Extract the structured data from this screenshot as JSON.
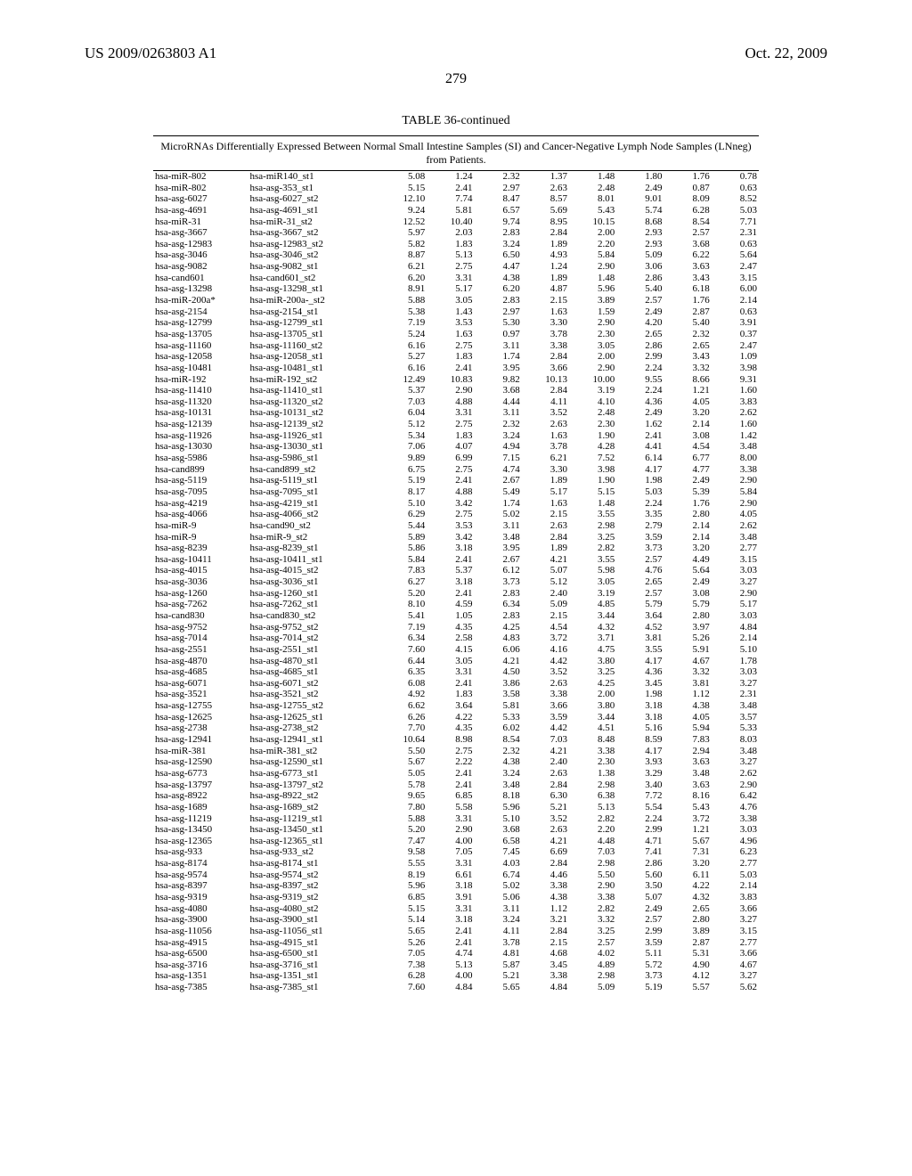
{
  "header": {
    "left": "US 2009/0263803 A1",
    "right": "Oct. 22, 2009"
  },
  "page_number": "279",
  "table_title": "TABLE 36-continued",
  "caption": "MicroRNAs Differentially Expressed Between Normal Small Intestine Samples (SI) and Cancer-Negative Lymph Node Samples (LNneg) from Patients.",
  "rows": [
    [
      "hsa-miR-802",
      "hsa-miR140_st1",
      "5.08",
      "1.24",
      "2.32",
      "1.37",
      "1.48",
      "1.80",
      "1.76",
      "0.78"
    ],
    [
      "hsa-miR-802",
      "hsa-asg-353_st1",
      "5.15",
      "2.41",
      "2.97",
      "2.63",
      "2.48",
      "2.49",
      "0.87",
      "0.63"
    ],
    [
      "hsa-asg-6027",
      "hsa-asg-6027_st2",
      "12.10",
      "7.74",
      "8.47",
      "8.57",
      "8.01",
      "9.01",
      "8.09",
      "8.52"
    ],
    [
      "hsa-asg-4691",
      "hsa-asg-4691_st1",
      "9.24",
      "5.81",
      "6.57",
      "5.69",
      "5.43",
      "5.74",
      "6.28",
      "5.03"
    ],
    [
      "hsa-miR-31",
      "hsa-miR-31_st2",
      "12.52",
      "10.40",
      "9.74",
      "8.95",
      "10.15",
      "8.68",
      "8.54",
      "7.71"
    ],
    [
      "hsa-asg-3667",
      "hsa-asg-3667_st2",
      "5.97",
      "2.03",
      "2.83",
      "2.84",
      "2.00",
      "2.93",
      "2.57",
      "2.31"
    ],
    [
      "hsa-asg-12983",
      "hsa-asg-12983_st2",
      "5.82",
      "1.83",
      "3.24",
      "1.89",
      "2.20",
      "2.93",
      "3.68",
      "0.63"
    ],
    [
      "hsa-asg-3046",
      "hsa-asg-3046_st2",
      "8.87",
      "5.13",
      "6.50",
      "4.93",
      "5.84",
      "5.09",
      "6.22",
      "5.64"
    ],
    [
      "hsa-asg-9082",
      "hsa-asg-9082_st1",
      "6.21",
      "2.75",
      "4.47",
      "1.24",
      "2.90",
      "3.06",
      "3.63",
      "2.47"
    ],
    [
      "hsa-cand601",
      "hsa-cand601_st2",
      "6.20",
      "3.31",
      "4.38",
      "1.89",
      "1.48",
      "2.86",
      "3.43",
      "3.15"
    ],
    [
      "hsa-asg-13298",
      "hsa-asg-13298_st1",
      "8.91",
      "5.17",
      "6.20",
      "4.87",
      "5.96",
      "5.40",
      "6.18",
      "6.00"
    ],
    [
      "hsa-miR-200a*",
      "hsa-miR-200a-_st2",
      "5.88",
      "3.05",
      "2.83",
      "2.15",
      "3.89",
      "2.57",
      "1.76",
      "2.14"
    ],
    [
      "hsa-asg-2154",
      "hsa-asg-2154_st1",
      "5.38",
      "1.43",
      "2.97",
      "1.63",
      "1.59",
      "2.49",
      "2.87",
      "0.63"
    ],
    [
      "hsa-asg-12799",
      "hsa-asg-12799_st1",
      "7.19",
      "3.53",
      "5.30",
      "3.30",
      "2.90",
      "4.20",
      "5.40",
      "3.91"
    ],
    [
      "hsa-asg-13705",
      "hsa-asg-13705_st1",
      "5.24",
      "1.63",
      "0.97",
      "3.78",
      "2.30",
      "2.65",
      "2.32",
      "0.37"
    ],
    [
      "hsa-asg-11160",
      "hsa-asg-11160_st2",
      "6.16",
      "2.75",
      "3.11",
      "3.38",
      "3.05",
      "2.86",
      "2.65",
      "2.47"
    ],
    [
      "hsa-asg-12058",
      "hsa-asg-12058_st1",
      "5.27",
      "1.83",
      "1.74",
      "2.84",
      "2.00",
      "2.99",
      "3.43",
      "1.09"
    ],
    [
      "hsa-asg-10481",
      "hsa-asg-10481_st1",
      "6.16",
      "2.41",
      "3.95",
      "3.66",
      "2.90",
      "2.24",
      "3.32",
      "3.98"
    ],
    [
      "hsa-miR-192",
      "hsa-miR-192_st2",
      "12.49",
      "10.83",
      "9.82",
      "10.13",
      "10.00",
      "9.55",
      "8.66",
      "9.31"
    ],
    [
      "hsa-asg-11410",
      "hsa-asg-11410_st1",
      "5.37",
      "2.90",
      "3.68",
      "2.84",
      "3.19",
      "2.24",
      "1.21",
      "1.60"
    ],
    [
      "hsa-asg-11320",
      "hsa-asg-11320_st2",
      "7.03",
      "4.88",
      "4.44",
      "4.11",
      "4.10",
      "4.36",
      "4.05",
      "3.83"
    ],
    [
      "hsa-asg-10131",
      "hsa-asg-10131_st2",
      "6.04",
      "3.31",
      "3.11",
      "3.52",
      "2.48",
      "2.49",
      "3.20",
      "2.62"
    ],
    [
      "hsa-asg-12139",
      "hsa-asg-12139_st2",
      "5.12",
      "2.75",
      "2.32",
      "2.63",
      "2.30",
      "1.62",
      "2.14",
      "1.60"
    ],
    [
      "hsa-asg-11926",
      "hsa-asg-11926_st1",
      "5.34",
      "1.83",
      "3.24",
      "1.63",
      "1.90",
      "2.41",
      "3.08",
      "1.42"
    ],
    [
      "hsa-asg-13030",
      "hsa-asg-13030_st1",
      "7.06",
      "4.07",
      "4.94",
      "3.78",
      "4.28",
      "4.41",
      "4.54",
      "3.48"
    ],
    [
      "hsa-asg-5986",
      "hsa-asg-5986_st1",
      "9.89",
      "6.99",
      "7.15",
      "6.21",
      "7.52",
      "6.14",
      "6.77",
      "8.00"
    ],
    [
      "hsa-cand899",
      "hsa-cand899_st2",
      "6.75",
      "2.75",
      "4.74",
      "3.30",
      "3.98",
      "4.17",
      "4.77",
      "3.38"
    ],
    [
      "hsa-asg-5119",
      "hsa-asg-5119_st1",
      "5.19",
      "2.41",
      "2.67",
      "1.89",
      "1.90",
      "1.98",
      "2.49",
      "2.90"
    ],
    [
      "hsa-asg-7095",
      "hsa-asg-7095_st1",
      "8.17",
      "4.88",
      "5.49",
      "5.17",
      "5.15",
      "5.03",
      "5.39",
      "5.84"
    ],
    [
      "hsa-asg-4219",
      "hsa-asg-4219_st1",
      "5.10",
      "3.42",
      "1.74",
      "1.63",
      "1.48",
      "2.24",
      "1.76",
      "2.90"
    ],
    [
      "hsa-asg-4066",
      "hsa-asg-4066_st2",
      "6.29",
      "2.75",
      "5.02",
      "2.15",
      "3.55",
      "3.35",
      "2.80",
      "4.05"
    ],
    [
      "hsa-miR-9",
      "hsa-cand90_st2",
      "5.44",
      "3.53",
      "3.11",
      "2.63",
      "2.98",
      "2.79",
      "2.14",
      "2.62"
    ],
    [
      "hsa-miR-9",
      "hsa-miR-9_st2",
      "5.89",
      "3.42",
      "3.48",
      "2.84",
      "3.25",
      "3.59",
      "2.14",
      "3.48"
    ],
    [
      "hsa-asg-8239",
      "hsa-asg-8239_st1",
      "5.86",
      "3.18",
      "3.95",
      "1.89",
      "2.82",
      "3.73",
      "3.20",
      "2.77"
    ],
    [
      "hsa-asg-10411",
      "hsa-asg-10411_st1",
      "5.84",
      "2.41",
      "2.67",
      "4.21",
      "3.55",
      "2.57",
      "4.49",
      "3.15"
    ],
    [
      "hsa-asg-4015",
      "hsa-asg-4015_st2",
      "7.83",
      "5.37",
      "6.12",
      "5.07",
      "5.98",
      "4.76",
      "5.64",
      "3.03"
    ],
    [
      "hsa-asg-3036",
      "hsa-asg-3036_st1",
      "6.27",
      "3.18",
      "3.73",
      "5.12",
      "3.05",
      "2.65",
      "2.49",
      "3.27"
    ],
    [
      "hsa-asg-1260",
      "hsa-asg-1260_st1",
      "5.20",
      "2.41",
      "2.83",
      "2.40",
      "3.19",
      "2.57",
      "3.08",
      "2.90"
    ],
    [
      "hsa-asg-7262",
      "hsa-asg-7262_st1",
      "8.10",
      "4.59",
      "6.34",
      "5.09",
      "4.85",
      "5.79",
      "5.79",
      "5.17"
    ],
    [
      "hsa-cand830",
      "hsa-cand830_st2",
      "5.41",
      "1.05",
      "2.83",
      "2.15",
      "3.44",
      "3.64",
      "2.80",
      "3.03"
    ],
    [
      "hsa-asg-9752",
      "hsa-asg-9752_st2",
      "7.19",
      "4.35",
      "4.25",
      "4.54",
      "4.32",
      "4.52",
      "3.97",
      "4.84"
    ],
    [
      "hsa-asg-7014",
      "hsa-asg-7014_st2",
      "6.34",
      "2.58",
      "4.83",
      "3.72",
      "3.71",
      "3.81",
      "5.26",
      "2.14"
    ],
    [
      "hsa-asg-2551",
      "hsa-asg-2551_st1",
      "7.60",
      "4.15",
      "6.06",
      "4.16",
      "4.75",
      "3.55",
      "5.91",
      "5.10"
    ],
    [
      "hsa-asg-4870",
      "hsa-asg-4870_st1",
      "6.44",
      "3.05",
      "4.21",
      "4.42",
      "3.80",
      "4.17",
      "4.67",
      "1.78"
    ],
    [
      "hsa-asg-4685",
      "hsa-asg-4685_st1",
      "6.35",
      "3.31",
      "4.50",
      "3.52",
      "3.25",
      "4.36",
      "3.32",
      "3.03"
    ],
    [
      "hsa-asg-6071",
      "hsa-asg-6071_st2",
      "6.08",
      "2.41",
      "3.86",
      "2.63",
      "4.25",
      "3.45",
      "3.81",
      "3.27"
    ],
    [
      "hsa-asg-3521",
      "hsa-asg-3521_st2",
      "4.92",
      "1.83",
      "3.58",
      "3.38",
      "2.00",
      "1.98",
      "1.12",
      "2.31"
    ],
    [
      "hsa-asg-12755",
      "hsa-asg-12755_st2",
      "6.62",
      "3.64",
      "5.81",
      "3.66",
      "3.80",
      "3.18",
      "4.38",
      "3.48"
    ],
    [
      "hsa-asg-12625",
      "hsa-asg-12625_st1",
      "6.26",
      "4.22",
      "5.33",
      "3.59",
      "3.44",
      "3.18",
      "4.05",
      "3.57"
    ],
    [
      "hsa-asg-2738",
      "hsa-asg-2738_st2",
      "7.70",
      "4.35",
      "6.02",
      "4.42",
      "4.51",
      "5.16",
      "5.94",
      "5.33"
    ],
    [
      "hsa-asg-12941",
      "hsa-asg-12941_st1",
      "10.64",
      "8.98",
      "8.54",
      "7.03",
      "8.48",
      "8.59",
      "7.83",
      "8.03"
    ],
    [
      "hsa-miR-381",
      "hsa-miR-381_st2",
      "5.50",
      "2.75",
      "2.32",
      "4.21",
      "3.38",
      "4.17",
      "2.94",
      "3.48"
    ],
    [
      "hsa-asg-12590",
      "hsa-asg-12590_st1",
      "5.67",
      "2.22",
      "4.38",
      "2.40",
      "2.30",
      "3.93",
      "3.63",
      "3.27"
    ],
    [
      "hsa-asg-6773",
      "hsa-asg-6773_st1",
      "5.05",
      "2.41",
      "3.24",
      "2.63",
      "1.38",
      "3.29",
      "3.48",
      "2.62"
    ],
    [
      "hsa-asg-13797",
      "hsa-asg-13797_st2",
      "5.78",
      "2.41",
      "3.48",
      "2.84",
      "2.98",
      "3.40",
      "3.63",
      "2.90"
    ],
    [
      "hsa-asg-8922",
      "hsa-asg-8922_st2",
      "9.65",
      "6.85",
      "8.18",
      "6.30",
      "6.38",
      "7.72",
      "8.16",
      "6.42"
    ],
    [
      "hsa-asg-1689",
      "hsa-asg-1689_st2",
      "7.80",
      "5.58",
      "5.96",
      "5.21",
      "5.13",
      "5.54",
      "5.43",
      "4.76"
    ],
    [
      "hsa-asg-11219",
      "hsa-asg-11219_st1",
      "5.88",
      "3.31",
      "5.10",
      "3.52",
      "2.82",
      "2.24",
      "3.72",
      "3.38"
    ],
    [
      "hsa-asg-13450",
      "hsa-asg-13450_st1",
      "5.20",
      "2.90",
      "3.68",
      "2.63",
      "2.20",
      "2.99",
      "1.21",
      "3.03"
    ],
    [
      "hsa-asg-12365",
      "hsa-asg-12365_st1",
      "7.47",
      "4.00",
      "6.58",
      "4.21",
      "4.48",
      "4.71",
      "5.67",
      "4.96"
    ],
    [
      "hsa-asg-933",
      "hsa-asg-933_st2",
      "9.58",
      "7.05",
      "7.45",
      "6.69",
      "7.03",
      "7.41",
      "7.31",
      "6.23"
    ],
    [
      "hsa-asg-8174",
      "hsa-asg-8174_st1",
      "5.55",
      "3.31",
      "4.03",
      "2.84",
      "2.98",
      "2.86",
      "3.20",
      "2.77"
    ],
    [
      "hsa-asg-9574",
      "hsa-asg-9574_st2",
      "8.19",
      "6.61",
      "6.74",
      "4.46",
      "5.50",
      "5.60",
      "6.11",
      "5.03"
    ],
    [
      "hsa-asg-8397",
      "hsa-asg-8397_st2",
      "5.96",
      "3.18",
      "5.02",
      "3.38",
      "2.90",
      "3.50",
      "4.22",
      "2.14"
    ],
    [
      "hsa-asg-9319",
      "hsa-asg-9319_st2",
      "6.85",
      "3.91",
      "5.06",
      "4.38",
      "3.38",
      "5.07",
      "4.32",
      "3.83"
    ],
    [
      "hsa-asg-4080",
      "hsa-asg-4080_st2",
      "5.15",
      "3.31",
      "3.11",
      "1.12",
      "2.82",
      "2.49",
      "2.65",
      "3.66"
    ],
    [
      "hsa-asg-3900",
      "hsa-asg-3900_st1",
      "5.14",
      "3.18",
      "3.24",
      "3.21",
      "3.32",
      "2.57",
      "2.80",
      "3.27"
    ],
    [
      "hsa-asg-11056",
      "hsa-asg-11056_st1",
      "5.65",
      "2.41",
      "4.11",
      "2.84",
      "3.25",
      "2.99",
      "3.89",
      "3.15"
    ],
    [
      "hsa-asg-4915",
      "hsa-asg-4915_st1",
      "5.26",
      "2.41",
      "3.78",
      "2.15",
      "2.57",
      "3.59",
      "2.87",
      "2.77"
    ],
    [
      "hsa-asg-6500",
      "hsa-asg-6500_st1",
      "7.05",
      "4.74",
      "4.81",
      "4.68",
      "4.02",
      "5.11",
      "5.31",
      "3.66"
    ],
    [
      "hsa-asg-3716",
      "hsa-asg-3716_st1",
      "7.38",
      "5.13",
      "5.87",
      "3.45",
      "4.89",
      "5.72",
      "4.90",
      "4.67"
    ],
    [
      "hsa-asg-1351",
      "hsa-asg-1351_st1",
      "6.28",
      "4.00",
      "5.21",
      "3.38",
      "2.98",
      "3.73",
      "4.12",
      "3.27"
    ],
    [
      "hsa-asg-7385",
      "hsa-asg-7385_st1",
      "7.60",
      "4.84",
      "5.65",
      "4.84",
      "5.09",
      "5.19",
      "5.57",
      "5.62"
    ]
  ]
}
